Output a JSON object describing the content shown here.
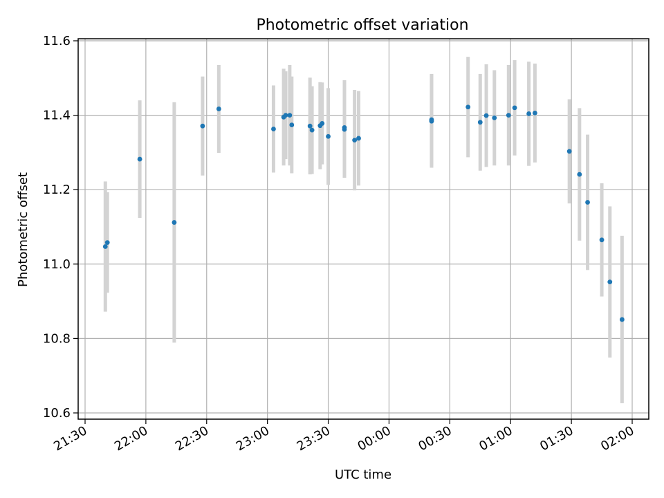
{
  "chart_data": {
    "type": "scatter",
    "title": "Photometric offset variation",
    "xlabel": "UTC time",
    "ylabel": "Photometric offset",
    "x_format": "HH:MM (UTC), date rolls over after 23:59",
    "xlim": [
      "21:30",
      "02:00"
    ],
    "ylim": [
      10.6,
      11.6
    ],
    "x_ticks": [
      "21:30",
      "22:00",
      "22:30",
      "23:00",
      "23:30",
      "00:00",
      "00:30",
      "01:00",
      "01:30",
      "02:00"
    ],
    "y_ticks": [
      "10.6",
      "10.8",
      "11.0",
      "11.2",
      "11.4",
      "11.6"
    ],
    "grid": true,
    "legend": "none",
    "colors": {
      "marker": "#1f77b4",
      "errorbar": "#d3d3d3",
      "grid": "#b0b0b0"
    },
    "series": [
      {
        "points": [
          {
            "x": "21:40",
            "y": 11.047,
            "err": 0.175
          },
          {
            "x": "21:41",
            "y": 11.058,
            "err": 0.135
          },
          {
            "x": "21:57",
            "y": 11.282,
            "err": 0.158
          },
          {
            "x": "22:14",
            "y": 11.112,
            "err": 0.323
          },
          {
            "x": "22:28",
            "y": 11.371,
            "err": 0.133
          },
          {
            "x": "22:36",
            "y": 11.417,
            "err": 0.118
          },
          {
            "x": "23:03",
            "y": 11.363,
            "err": 0.117
          },
          {
            "x": "23:08",
            "y": 11.395,
            "err": 0.13
          },
          {
            "x": "23:09",
            "y": 11.4,
            "err": 0.118
          },
          {
            "x": "23:11",
            "y": 11.4,
            "err": 0.135
          },
          {
            "x": "23:12",
            "y": 11.374,
            "err": 0.13
          },
          {
            "x": "23:21",
            "y": 11.371,
            "err": 0.13
          },
          {
            "x": "23:22",
            "y": 11.36,
            "err": 0.118
          },
          {
            "x": "23:26",
            "y": 11.372,
            "err": 0.117
          },
          {
            "x": "23:27",
            "y": 11.378,
            "err": 0.11
          },
          {
            "x": "23:30",
            "y": 11.343,
            "err": 0.13
          },
          {
            "x": "23:38",
            "y": 11.362,
            "err": 0.13
          },
          {
            "x": "23:38",
            "y": 11.367,
            "err": 0.127
          },
          {
            "x": "23:43",
            "y": 11.333,
            "err": 0.135
          },
          {
            "x": "23:45",
            "y": 11.338,
            "err": 0.127
          },
          {
            "x": "00:21",
            "y": 11.384,
            "err": 0.125
          },
          {
            "x": "00:21",
            "y": 11.388,
            "err": 0.123
          },
          {
            "x": "00:39",
            "y": 11.422,
            "err": 0.135
          },
          {
            "x": "00:45",
            "y": 11.381,
            "err": 0.13
          },
          {
            "x": "00:48",
            "y": 11.399,
            "err": 0.138
          },
          {
            "x": "00:52",
            "y": 11.393,
            "err": 0.128
          },
          {
            "x": "00:59",
            "y": 11.4,
            "err": 0.135
          },
          {
            "x": "01:02",
            "y": 11.42,
            "err": 0.128
          },
          {
            "x": "01:09",
            "y": 11.404,
            "err": 0.14
          },
          {
            "x": "01:12",
            "y": 11.406,
            "err": 0.133
          },
          {
            "x": "01:29",
            "y": 11.303,
            "err": 0.14
          },
          {
            "x": "01:34",
            "y": 11.241,
            "err": 0.178
          },
          {
            "x": "01:38",
            "y": 11.166,
            "err": 0.182
          },
          {
            "x": "01:45",
            "y": 11.065,
            "err": 0.152
          },
          {
            "x": "01:49",
            "y": 10.952,
            "err": 0.203
          },
          {
            "x": "01:55",
            "y": 10.851,
            "err": 0.225
          }
        ]
      }
    ]
  }
}
